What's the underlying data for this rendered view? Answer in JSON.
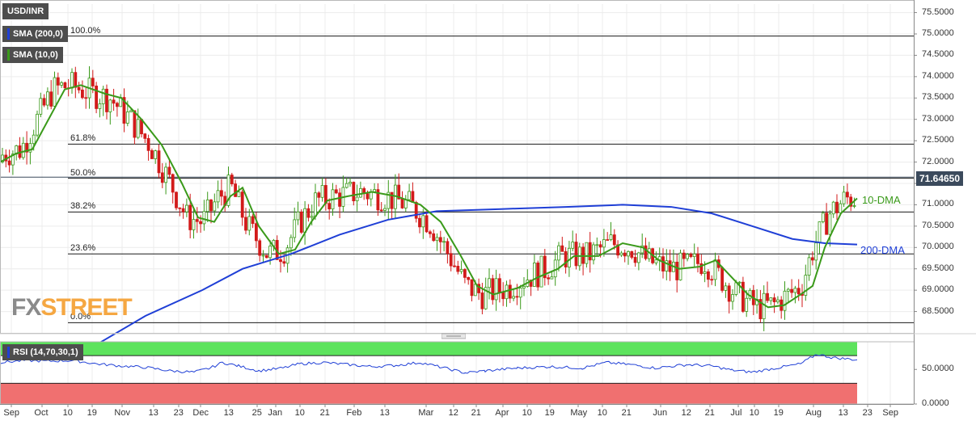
{
  "chart_data": {
    "type": "candlestick",
    "symbol": "USD/INR",
    "last_price": "71.64650",
    "y_ticks": [
      "75.5000",
      "75.0000",
      "74.5000",
      "74.0000",
      "73.5000",
      "73.0000",
      "72.5000",
      "72.0000",
      "71.5000",
      "71.0000",
      "70.5000",
      "70.0000",
      "69.5000",
      "69.0000",
      "68.5000"
    ],
    "ylim": [
      68.0,
      75.7
    ],
    "x_ticks": [
      "Sep",
      "Oct",
      "10",
      "19",
      "Nov",
      "13",
      "23",
      "Dec",
      "13",
      "25",
      "Jan",
      "10",
      "21",
      "Feb",
      "13",
      "Mar",
      "12",
      "21",
      "Apr",
      "10",
      "19",
      "May",
      "10",
      "21",
      "Jun",
      "12",
      "21",
      "Jul",
      "10",
      "19",
      "Aug",
      "13",
      "23",
      "Sep"
    ],
    "fib_levels": [
      {
        "label": "100.0%",
        "value": 74.95
      },
      {
        "label": "61.8%",
        "value": 72.42
      },
      {
        "label": "50.0%",
        "value": 71.62
      },
      {
        "label": "38.2%",
        "value": 70.83
      },
      {
        "label": "23.6%",
        "value": 69.85
      },
      {
        "label": "0.0%",
        "value": 68.24
      }
    ],
    "series": [
      {
        "name": "SMA (200,0)",
        "color": "#1f3fd6",
        "points": [
          [
            117,
            67.7
          ],
          [
            180,
            68.4
          ],
          [
            250,
            69.0
          ],
          [
            300,
            69.5
          ],
          [
            360,
            69.85
          ],
          [
            420,
            70.3
          ],
          [
            480,
            70.65
          ],
          [
            540,
            70.85
          ],
          [
            620,
            70.9
          ],
          [
            700,
            70.95
          ],
          [
            770,
            71.0
          ],
          [
            830,
            70.95
          ],
          [
            880,
            70.8
          ],
          [
            930,
            70.5
          ],
          [
            980,
            70.2
          ],
          [
            1020,
            70.1
          ],
          [
            1060,
            70.07
          ]
        ]
      },
      {
        "name": "SMA (10,0)",
        "color": "#3a9a1a",
        "points": [
          [
            0,
            72.0
          ],
          [
            20,
            72.2
          ],
          [
            40,
            72.3
          ],
          [
            60,
            73.0
          ],
          [
            80,
            73.7
          ],
          [
            100,
            73.8
          ],
          [
            130,
            73.6
          ],
          [
            150,
            73.5
          ],
          [
            175,
            73.0
          ],
          [
            200,
            72.4
          ],
          [
            225,
            71.5
          ],
          [
            245,
            70.7
          ],
          [
            265,
            70.6
          ],
          [
            285,
            71.2
          ],
          [
            300,
            71.4
          ],
          [
            320,
            70.5
          ],
          [
            345,
            69.85
          ],
          [
            365,
            69.95
          ],
          [
            385,
            70.6
          ],
          [
            405,
            71.1
          ],
          [
            430,
            71.2
          ],
          [
            460,
            71.3
          ],
          [
            490,
            71.2
          ],
          [
            520,
            71.0
          ],
          [
            545,
            70.6
          ],
          [
            570,
            69.8
          ],
          [
            590,
            69.1
          ],
          [
            610,
            68.9
          ],
          [
            640,
            69.05
          ],
          [
            665,
            69.3
          ],
          [
            690,
            69.5
          ],
          [
            710,
            69.8
          ],
          [
            740,
            69.8
          ],
          [
            770,
            70.1
          ],
          [
            795,
            70.0
          ],
          [
            815,
            69.7
          ],
          [
            840,
            69.5
          ],
          [
            865,
            69.55
          ],
          [
            885,
            69.7
          ],
          [
            905,
            69.3
          ],
          [
            925,
            68.9
          ],
          [
            950,
            68.6
          ],
          [
            970,
            68.65
          ],
          [
            990,
            68.9
          ],
          [
            1005,
            69.1
          ],
          [
            1020,
            70.0
          ],
          [
            1040,
            70.8
          ],
          [
            1060,
            71.15
          ]
        ]
      },
      {
        "name": "RSI (14,70,30,1)",
        "color": "#1f3fd6",
        "points": [
          [
            0,
            60
          ],
          [
            30,
            63
          ],
          [
            60,
            62
          ],
          [
            90,
            63
          ],
          [
            120,
            58
          ],
          [
            150,
            55
          ],
          [
            180,
            53
          ],
          [
            210,
            48
          ],
          [
            240,
            46
          ],
          [
            260,
            52
          ],
          [
            275,
            60
          ],
          [
            295,
            55
          ],
          [
            320,
            48
          ],
          [
            350,
            52
          ],
          [
            370,
            58
          ],
          [
            400,
            60
          ],
          [
            430,
            57
          ],
          [
            460,
            54
          ],
          [
            490,
            56
          ],
          [
            520,
            60
          ],
          [
            550,
            52
          ],
          [
            575,
            45
          ],
          [
            600,
            48
          ],
          [
            640,
            52
          ],
          [
            680,
            54
          ],
          [
            720,
            52
          ],
          [
            750,
            60
          ],
          [
            780,
            57
          ],
          [
            810,
            52
          ],
          [
            850,
            57
          ],
          [
            880,
            55
          ],
          [
            905,
            49
          ],
          [
            930,
            46
          ],
          [
            960,
            52
          ],
          [
            990,
            58
          ],
          [
            1010,
            72
          ],
          [
            1030,
            67
          ],
          [
            1060,
            64
          ]
        ]
      }
    ],
    "rsi": {
      "label": "RSI (14,70,30,1)",
      "ticks": [
        "50.0000",
        "0.0000"
      ],
      "overbought": 70,
      "oversold": 30,
      "ylim": [
        0,
        90
      ]
    },
    "annotations": [
      {
        "text": "10-DMA",
        "color": "#3a9a1a"
      },
      {
        "text": "200-DMA",
        "color": "#1f3fd6"
      }
    ]
  },
  "legend": {
    "symbol_label": "USD/INR",
    "sma200_label": "SMA (200,0)",
    "sma10_label": "SMA (10,0)",
    "rsi_label": "RSI (14,70,30,1)"
  },
  "logo": {
    "fx": "FX",
    "street": "STREET"
  },
  "colors": {
    "bull": "#3a9a1a",
    "bear": "#d21a1a",
    "sma200": "#1f3fd6",
    "sma10": "#3a9a1a",
    "rsi_ob": "#5de35d",
    "rsi_os": "#f07070"
  }
}
